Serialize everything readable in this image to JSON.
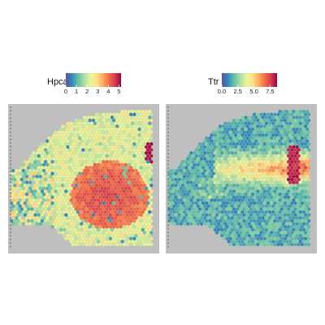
{
  "chart_data": [
    {
      "type": "heatmap",
      "subtype": "spatial transcriptomics spot plot",
      "legend_title": "Hpca",
      "ticks": [
        "0",
        "1",
        "2",
        "3",
        "4",
        "5"
      ],
      "value_range": [
        0,
        5.2
      ],
      "colormap": [
        "#5e4fa2",
        "#3288bd",
        "#66c2a5",
        "#abdda4",
        "#e6f598",
        "#fee08b",
        "#fdae61",
        "#f46d43",
        "#d53e4f",
        "#9e0142"
      ],
      "background_color": "#bfbfbf",
      "pattern": "moderate background (~2.5) with high-expression region (~4) in center-right, low spots scattered on left tissue lobe, hot stripe at right edge"
    },
    {
      "type": "heatmap",
      "subtype": "spatial transcriptomics spot plot",
      "legend_title": "Ttr",
      "ticks": [
        "0.0",
        "2.5",
        "5.0",
        "7.5"
      ],
      "value_range": [
        0,
        8.6
      ],
      "colormap": [
        "#5e4fa2",
        "#3288bd",
        "#66c2a5",
        "#abdda4",
        "#e6f598",
        "#fee08b",
        "#fdae61",
        "#f46d43",
        "#d53e4f",
        "#9e0142"
      ],
      "background_color": "#bfbfbf",
      "pattern": "low expression overall, mid-level band along horizontal center, very high vertical stripe at right"
    }
  ]
}
